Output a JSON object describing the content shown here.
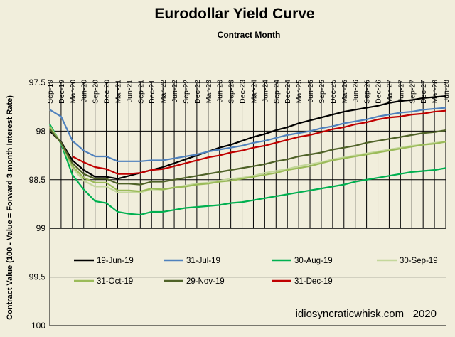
{
  "chart_data": {
    "type": "line",
    "title": "Eurodollar Yield Curve",
    "xlabel": "Contract Month",
    "ylabel": "Contract Value (100 - Value = Forward 3 month Interest Rate)",
    "yticks": [
      "97.5",
      "98",
      "98.5",
      "99",
      "99.5",
      "100"
    ],
    "ylim": [
      97.5,
      100
    ],
    "y_inverted": true,
    "grid": "vertical lines at each contract month; horizontal lines at each y tick",
    "legend_position": "bottom, inside plot area",
    "watermark": "idiosyncraticwhisk.com   2020",
    "categories": [
      "Sep-19",
      "Dec-19",
      "Mar-20",
      "Jun-20",
      "Sep-20",
      "Dec-20",
      "Mar-21",
      "Jun-21",
      "Sep-21",
      "Dec-21",
      "Mar-22",
      "Jun-22",
      "Sep-22",
      "Dec-22",
      "Mar-23",
      "Jun-23",
      "Sep-23",
      "Dec-23",
      "Mar-24",
      "Jun-24",
      "Sep-24",
      "Dec-24",
      "Mar-25",
      "Jun-25",
      "Sep-25",
      "Dec-25",
      "Mar-26",
      "Jun-26",
      "Sep-26",
      "Dec-26",
      "Mar-27",
      "Jun-27",
      "Sep-27",
      "Dec-27",
      "Mar-28",
      "Jun-28"
    ],
    "series": [
      {
        "name": "19-Jun-19",
        "color": "#000000",
        "values": [
          98.0,
          98.11,
          98.3,
          98.4,
          98.47,
          98.47,
          98.49,
          98.46,
          98.43,
          98.4,
          98.37,
          98.33,
          98.29,
          98.25,
          98.21,
          98.17,
          98.14,
          98.1,
          98.06,
          98.03,
          97.99,
          97.96,
          97.92,
          97.89,
          97.86,
          97.83,
          97.8,
          97.78,
          97.76,
          97.74,
          97.71,
          97.69,
          97.68,
          97.66,
          97.65,
          97.64
        ]
      },
      {
        "name": "31-Jul-19",
        "color": "#4f81bd",
        "values": [
          97.78,
          97.85,
          98.1,
          98.2,
          98.26,
          98.26,
          98.31,
          98.31,
          98.31,
          98.3,
          98.3,
          98.28,
          98.26,
          98.24,
          98.21,
          98.19,
          98.17,
          98.15,
          98.12,
          98.1,
          98.07,
          98.04,
          98.02,
          98.0,
          97.97,
          97.95,
          97.92,
          97.9,
          97.88,
          97.85,
          97.83,
          97.81,
          97.8,
          97.78,
          97.77,
          97.76
        ]
      },
      {
        "name": "30-Aug-19",
        "color": "#00b050",
        "values": [
          97.93,
          98.13,
          98.45,
          98.6,
          98.72,
          98.74,
          98.83,
          98.85,
          98.86,
          98.83,
          98.83,
          98.81,
          98.79,
          98.78,
          98.77,
          98.76,
          98.74,
          98.73,
          98.71,
          98.69,
          98.67,
          98.65,
          98.63,
          98.61,
          98.59,
          98.57,
          98.55,
          98.52,
          98.5,
          98.48,
          98.46,
          98.44,
          98.42,
          98.41,
          98.4,
          98.38
        ]
      },
      {
        "name": "30-Sep-19",
        "color": "#c4d79b",
        "values": [
          97.95,
          98.12,
          98.38,
          98.51,
          98.57,
          98.57,
          98.63,
          98.63,
          98.63,
          98.6,
          98.6,
          98.58,
          98.56,
          98.54,
          98.53,
          98.51,
          98.49,
          98.48,
          98.46,
          98.43,
          98.41,
          98.39,
          98.36,
          98.34,
          98.32,
          98.29,
          98.27,
          98.25,
          98.23,
          98.21,
          98.19,
          98.17,
          98.15,
          98.14,
          98.12,
          98.11
        ]
      },
      {
        "name": "31-Oct-19",
        "color": "#9bbb59",
        "values": [
          97.96,
          98.12,
          98.36,
          98.48,
          98.53,
          98.53,
          98.61,
          98.61,
          98.62,
          98.59,
          98.6,
          98.58,
          98.57,
          98.55,
          98.54,
          98.52,
          98.51,
          98.49,
          98.47,
          98.45,
          98.43,
          98.4,
          98.38,
          98.36,
          98.33,
          98.3,
          98.28,
          98.26,
          98.24,
          98.22,
          98.2,
          98.18,
          98.16,
          98.14,
          98.13,
          98.11
        ]
      },
      {
        "name": "29-Nov-19",
        "color": "#4f6228",
        "values": [
          97.98,
          98.12,
          98.33,
          98.44,
          98.49,
          98.49,
          98.54,
          98.54,
          98.55,
          98.52,
          98.52,
          98.5,
          98.48,
          98.46,
          98.44,
          98.42,
          98.4,
          98.38,
          98.36,
          98.34,
          98.31,
          98.29,
          98.26,
          98.24,
          98.22,
          98.19,
          98.17,
          98.15,
          98.12,
          98.1,
          98.08,
          98.06,
          98.04,
          98.02,
          98.01,
          97.99
        ]
      },
      {
        "name": "31-Dec-19",
        "color": "#c00000",
        "values": [
          null,
          null,
          98.26,
          98.32,
          98.37,
          98.39,
          98.44,
          98.44,
          98.43,
          98.4,
          98.39,
          98.36,
          98.33,
          98.3,
          98.27,
          98.25,
          98.22,
          98.2,
          98.17,
          98.15,
          98.12,
          98.09,
          98.06,
          98.04,
          98.01,
          97.98,
          97.96,
          97.93,
          97.91,
          97.88,
          97.86,
          97.85,
          97.83,
          97.82,
          97.8,
          97.79
        ]
      }
    ]
  },
  "colors": {
    "background": "#f1eedc",
    "grid": "#000000"
  }
}
